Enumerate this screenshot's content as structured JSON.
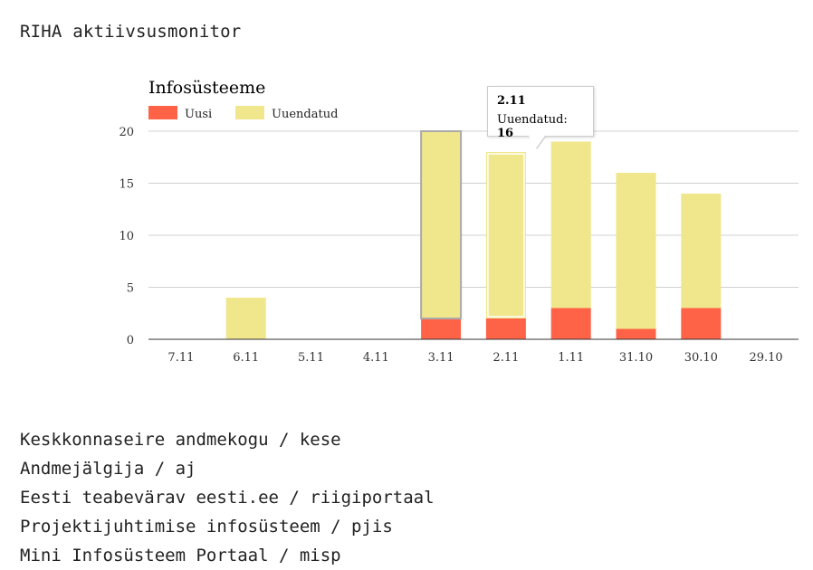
{
  "page": {
    "heading": "RIHA aktiivsusmonitor"
  },
  "chart_data": {
    "type": "bar",
    "stacked": true,
    "title": "Infosüsteeme",
    "categories": [
      "7.11",
      "6.11",
      "5.11",
      "4.11",
      "3.11",
      "2.11",
      "1.11",
      "31.10",
      "30.10",
      "29.10"
    ],
    "series": [
      {
        "name": "Uusi",
        "color": "#ff6347",
        "values": [
          0,
          0,
          0,
          0,
          2,
          2,
          3,
          1,
          3,
          0
        ]
      },
      {
        "name": "Uuendatud",
        "color": "#f0e68c",
        "values": [
          0,
          4,
          0,
          0,
          18,
          16,
          16,
          15,
          11,
          0
        ]
      }
    ],
    "y_ticks": [
      "0",
      "5",
      "10",
      "15",
      "20"
    ],
    "ylim": [
      0,
      20
    ],
    "grid": true,
    "legend": "top-left",
    "highlighted_category": "3.11",
    "tooltip": {
      "category": "2.11",
      "series": "Uuendatud",
      "label": "Uuendatud: ",
      "value": "16"
    }
  },
  "systems": [
    "Keskkonnaseire andmekogu / kese",
    "Andmejälgija / aj",
    "Eesti teabevärav eesti.ee / riigiportaal",
    "Projektijuhtimise infosüsteem / pjis",
    "Mini Infosüsteem Portaal / misp"
  ]
}
